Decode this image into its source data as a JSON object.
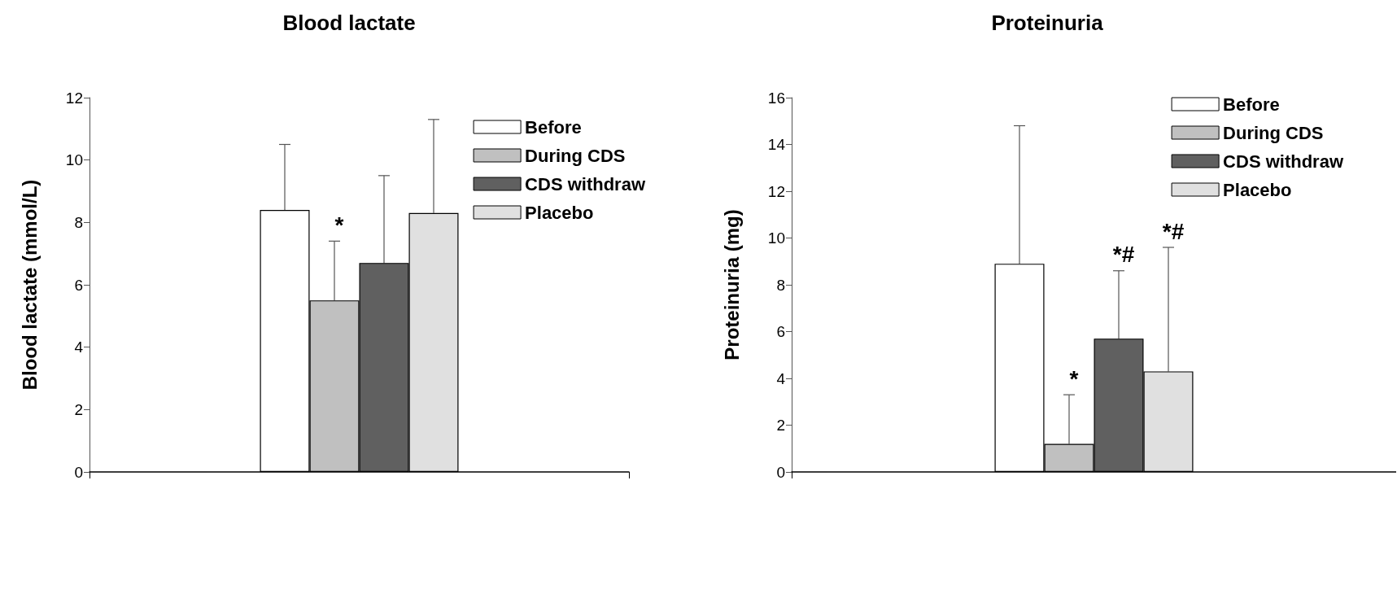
{
  "chart_data": [
    {
      "type": "bar",
      "title": "Blood lactate",
      "ylabel": "Blood lactate (mmol/L)",
      "categories": [
        null
      ],
      "ylim": [
        0,
        12
      ],
      "yticks": [
        0,
        2,
        4,
        6,
        8,
        10,
        12
      ],
      "legend": "top right",
      "grid": false,
      "series": [
        {
          "name": "Before",
          "color": "#ffffff",
          "values": [
            8.4
          ],
          "errors": [
            [
              8.4,
              10.5
            ]
          ]
        },
        {
          "name": "During CDS",
          "color": "#c0c0c0",
          "values": [
            5.5
          ],
          "errors": [
            [
              5.5,
              7.4
            ]
          ]
        },
        {
          "name": "CDS withdraw",
          "color": "#606060",
          "values": [
            6.7
          ],
          "errors": [
            [
              6.7,
              9.5
            ]
          ]
        },
        {
          "name": "Placebo",
          "color": "#e0e0e0",
          "values": [
            8.3
          ],
          "errors": [
            [
              8.3,
              11.3
            ]
          ]
        }
      ],
      "annotations": [
        {
          "text": "*",
          "y": 7.4
        }
      ]
    },
    {
      "type": "bar",
      "title": "Proteinuria",
      "ylabel": "Proteinuria (mg)",
      "categories": [
        null
      ],
      "ylim": [
        0,
        16
      ],
      "yticks": [
        0,
        2,
        4,
        6,
        8,
        10,
        12,
        14,
        16
      ],
      "legend": "top right",
      "grid": false,
      "series": [
        {
          "name": "Before",
          "color": "#ffffff",
          "values": [
            8.9
          ],
          "errors": [
            [
              8.9,
              14.8
            ]
          ]
        },
        {
          "name": "During CDS",
          "color": "#c0c0c0",
          "values": [
            1.2
          ],
          "errors": [
            [
              1.2,
              3.3
            ]
          ]
        },
        {
          "name": "CDS withdraw",
          "color": "#606060",
          "values": [
            5.7
          ],
          "errors": [
            [
              5.7,
              8.6
            ]
          ]
        },
        {
          "name": "Placebo",
          "color": "#e0e0e0",
          "values": [
            4.3
          ],
          "errors": [
            [
              4.3,
              9.6
            ]
          ]
        }
      ],
      "annotations": [
        {
          "text": "*",
          "y": 3.3
        },
        {
          "text": "*#",
          "y": 8.6
        },
        {
          "text": "*#",
          "y": 9.6
        }
      ]
    }
  ]
}
